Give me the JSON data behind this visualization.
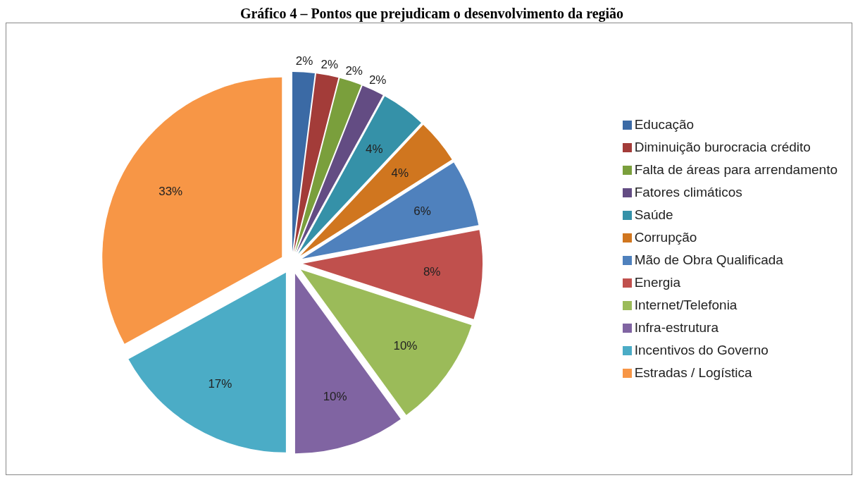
{
  "chart_data": {
    "type": "pie",
    "title": "Gráfico 4 – Pontos que prejudicam o desenvolvimento da região",
    "categories": [
      "Educação",
      "Diminuição burocracia crédito",
      "Falta de áreas para arrendamento",
      "Fatores climáticos",
      "Saúde",
      "Corrupção",
      "Mão de Obra Qualificada",
      "Energia",
      "Internet/Telefonia",
      "Infra-estrutura",
      "Incentivos do Governo",
      "Estradas / Logística"
    ],
    "values": [
      2,
      2,
      2,
      2,
      4,
      4,
      6,
      8,
      10,
      10,
      17,
      33
    ],
    "colors": [
      "#3b6aa5",
      "#a33c39",
      "#7a9f3c",
      "#634c83",
      "#3591a8",
      "#d0761f",
      "#4f81bd",
      "#c0504d",
      "#9bbb59",
      "#8064a2",
      "#4bacc6",
      "#f79646"
    ],
    "value_labels": [
      "2%",
      "2%",
      "2%",
      "2%",
      "4%",
      "4%",
      "6%",
      "8%",
      "10%",
      "10%",
      "17%",
      "33%"
    ],
    "legend": "right"
  }
}
